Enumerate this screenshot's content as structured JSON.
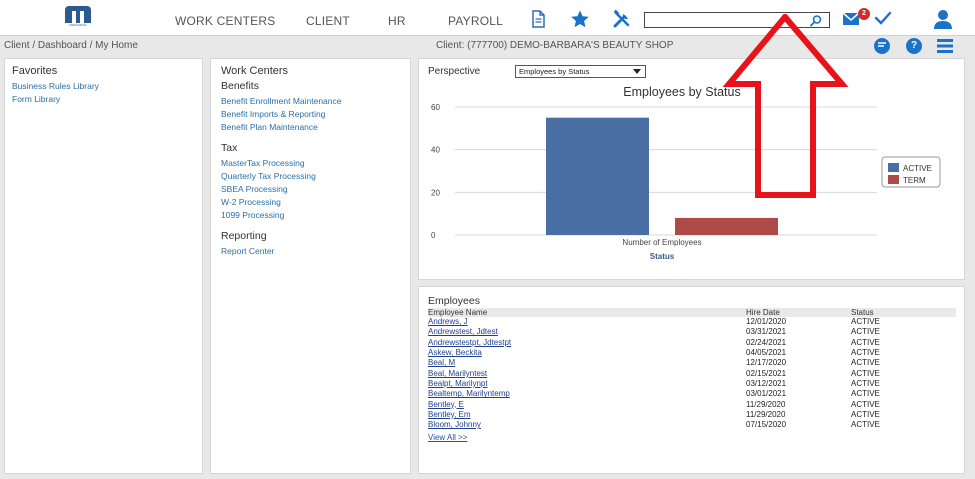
{
  "nav": {
    "logo_text": "RESOURCE",
    "links": [
      "WORK CENTERS",
      "CLIENT",
      "HR",
      "PAYROLL"
    ],
    "icons": [
      "document-icon",
      "star-icon",
      "tools-icon"
    ],
    "search": {
      "value": "",
      "placeholder": ""
    },
    "mail_badge": "2"
  },
  "breadcrumb": "Client / Dashboard / My Home",
  "client_label": "Client: (777700) DEMO-BARBARA'S BEAUTY SHOP",
  "favorites": {
    "title": "Favorites",
    "items": [
      "Business Rules Library",
      "Form Library"
    ]
  },
  "work_centers": {
    "title": "Work Centers",
    "sections": [
      {
        "title": "Benefits",
        "items": [
          "Benefit Enrollment Maintenance",
          "Benefit Imports & Reporting",
          "Benefit Plan Maintenance"
        ]
      },
      {
        "title": "Tax",
        "items": [
          "MasterTax Processing",
          "Quarterly Tax Processing",
          "SBEA Processing",
          "W-2 Processing",
          "1099 Processing"
        ]
      },
      {
        "title": "Reporting",
        "items": [
          "Report Center"
        ]
      }
    ]
  },
  "perspective": {
    "label": "Perspective",
    "selected": "Employees by Status"
  },
  "chart_data": {
    "type": "bar",
    "title": "Employees by Status",
    "categories": [
      "Number of Employees"
    ],
    "series": [
      {
        "name": "ACTIVE",
        "values": [
          55
        ],
        "color": "#4a6fa5"
      },
      {
        "name": "TERM",
        "values": [
          8
        ],
        "color": "#b04a48"
      }
    ],
    "xlabel": "Status",
    "ylabel": "",
    "ylim": [
      0,
      60
    ],
    "yticks": [
      0,
      20,
      40,
      60
    ],
    "grid": true,
    "legend": "right"
  },
  "employees": {
    "title": "Employees",
    "columns": [
      "Employee Name",
      "Hire Date",
      "Status"
    ],
    "rows": [
      [
        "Andrews, J",
        "12/01/2020",
        "ACTIVE"
      ],
      [
        "Andrewstest, Jdtest",
        "03/31/2021",
        "ACTIVE"
      ],
      [
        "Andrewstestpt, Jdtestpt",
        "02/24/2021",
        "ACTIVE"
      ],
      [
        "Askew, Beckita",
        "04/05/2021",
        "ACTIVE"
      ],
      [
        "Beal, M",
        "12/17/2020",
        "ACTIVE"
      ],
      [
        "Beal, Marilyntest",
        "02/15/2021",
        "ACTIVE"
      ],
      [
        "Bealpt, Marilynpt",
        "03/12/2021",
        "ACTIVE"
      ],
      [
        "Bealtemp, Marilyntemp",
        "03/01/2021",
        "ACTIVE"
      ],
      [
        "Bentley, E",
        "11/29/2020",
        "ACTIVE"
      ],
      [
        "Bentley, Em",
        "11/29/2020",
        "ACTIVE"
      ],
      [
        "Bloom, Johnny",
        "07/15/2020",
        "ACTIVE"
      ]
    ],
    "view_all": "View All >>"
  },
  "colors": {
    "accent": "#1a73c8",
    "annotation": "#e8121a"
  }
}
